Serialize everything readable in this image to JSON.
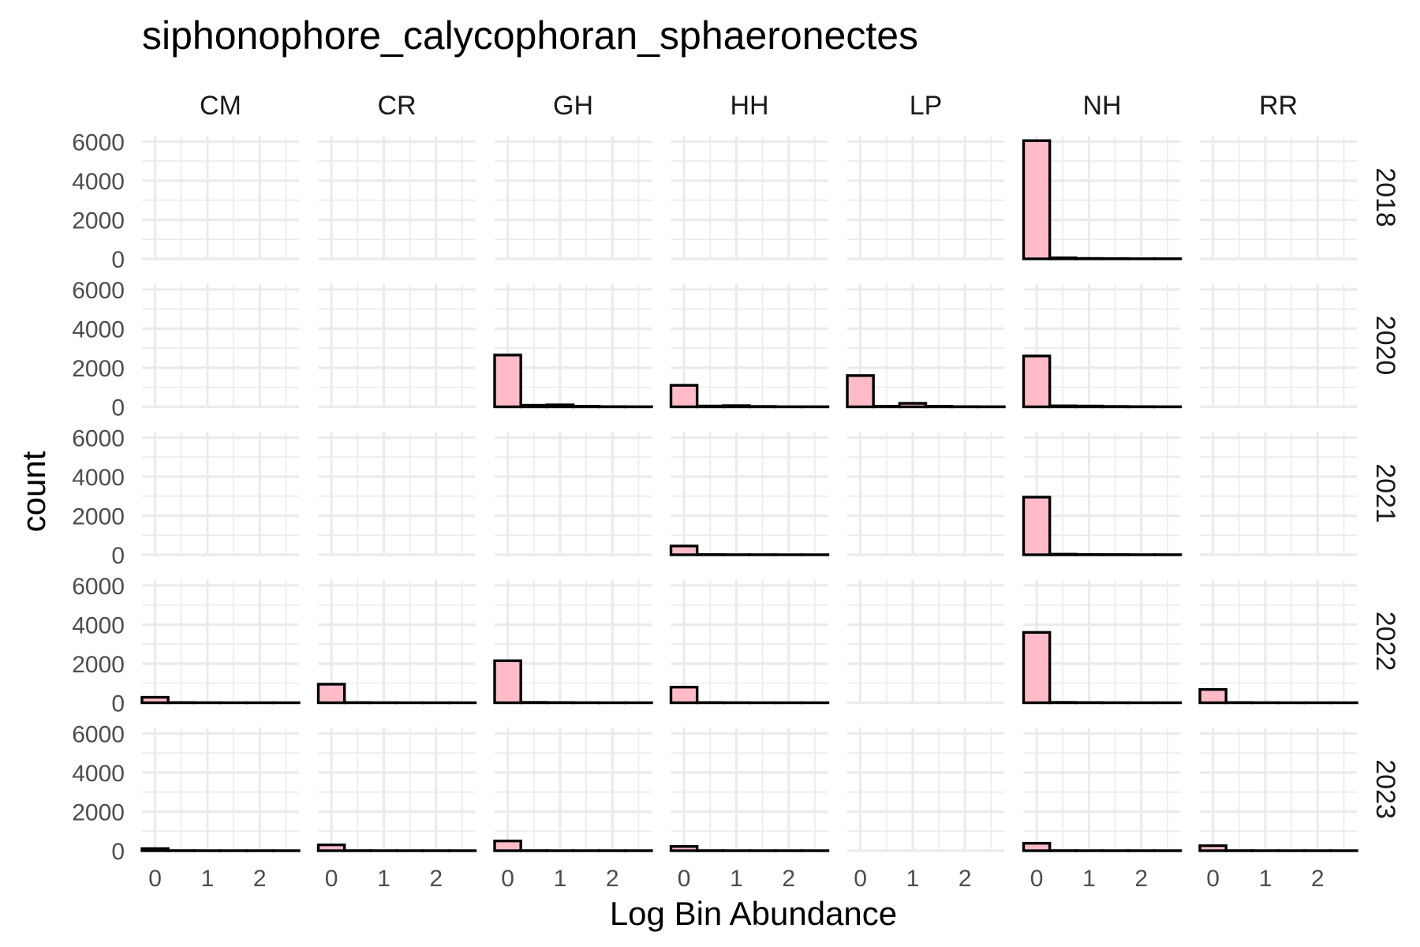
{
  "chart_data": {
    "type": "bar",
    "subtype": "faceted-histogram",
    "title": "siphonophore_calycophoran_sphaeronectes",
    "xlabel": "Log Bin Abundance",
    "ylabel": "count",
    "columns": [
      "CM",
      "CR",
      "GH",
      "HH",
      "LP",
      "NH",
      "RR"
    ],
    "rows": [
      "2018",
      "2020",
      "2021",
      "2022",
      "2023"
    ],
    "x_ticks": [
      "0",
      "1",
      "2"
    ],
    "y_ticks": [
      "0",
      "2000",
      "4000",
      "6000"
    ],
    "xlim": [
      -0.25,
      2.75
    ],
    "ylim": [
      0,
      6300
    ],
    "bin_width": 0.5,
    "bin_starts": [
      -0.25,
      0.25,
      0.75,
      1.25,
      1.75,
      2.25
    ],
    "bar_fill": "#ffbcc8",
    "bar_outline": "#000000",
    "panels": [
      {
        "row": "2018",
        "col": "NH",
        "counts": [
          6050,
          50,
          20,
          10,
          5,
          5
        ]
      },
      {
        "row": "2020",
        "col": "GH",
        "counts": [
          2650,
          80,
          100,
          30,
          10,
          5
        ]
      },
      {
        "row": "2020",
        "col": "HH",
        "counts": [
          1100,
          40,
          60,
          20,
          5,
          5
        ]
      },
      {
        "row": "2020",
        "col": "LP",
        "counts": [
          1600,
          30,
          180,
          30,
          10,
          5
        ]
      },
      {
        "row": "2020",
        "col": "NH",
        "counts": [
          2600,
          50,
          40,
          20,
          10,
          5
        ]
      },
      {
        "row": "2021",
        "col": "HH",
        "counts": [
          450,
          10,
          5,
          5,
          2,
          2
        ]
      },
      {
        "row": "2021",
        "col": "NH",
        "counts": [
          2950,
          30,
          15,
          10,
          5,
          5
        ]
      },
      {
        "row": "2022",
        "col": "CM",
        "counts": [
          280,
          10,
          5,
          2,
          2,
          2
        ]
      },
      {
        "row": "2022",
        "col": "CR",
        "counts": [
          950,
          10,
          5,
          2,
          2,
          2
        ]
      },
      {
        "row": "2022",
        "col": "GH",
        "counts": [
          2150,
          20,
          10,
          5,
          2,
          2
        ]
      },
      {
        "row": "2022",
        "col": "HH",
        "counts": [
          800,
          10,
          5,
          2,
          2,
          2
        ]
      },
      {
        "row": "2022",
        "col": "NH",
        "counts": [
          3600,
          20,
          10,
          5,
          2,
          2
        ]
      },
      {
        "row": "2022",
        "col": "RR",
        "counts": [
          680,
          10,
          5,
          2,
          2,
          2
        ]
      },
      {
        "row": "2023",
        "col": "CM",
        "counts": [
          110,
          5,
          2,
          2,
          2,
          2
        ]
      },
      {
        "row": "2023",
        "col": "CR",
        "counts": [
          300,
          5,
          2,
          2,
          2,
          2
        ]
      },
      {
        "row": "2023",
        "col": "GH",
        "counts": [
          500,
          5,
          2,
          2,
          2,
          2
        ]
      },
      {
        "row": "2023",
        "col": "HH",
        "counts": [
          220,
          5,
          2,
          2,
          2,
          2
        ]
      },
      {
        "row": "2023",
        "col": "NH",
        "counts": [
          380,
          5,
          2,
          2,
          2,
          2
        ]
      },
      {
        "row": "2023",
        "col": "RR",
        "counts": [
          260,
          5,
          2,
          2,
          2,
          2
        ]
      }
    ]
  }
}
